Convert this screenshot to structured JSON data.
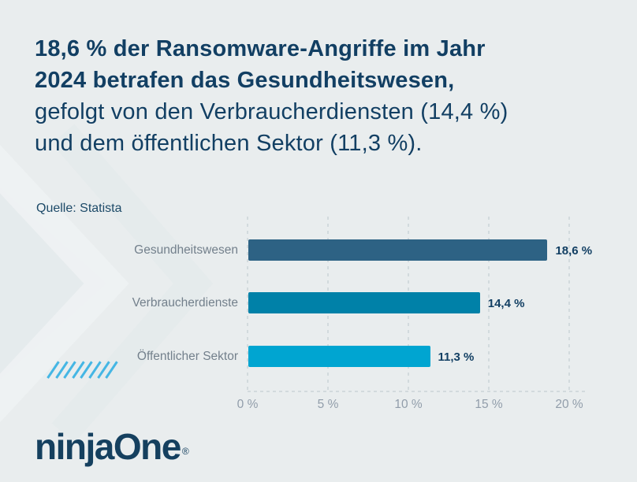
{
  "page": {
    "background": "#e9edee"
  },
  "headline": {
    "color": "#123f63",
    "lines": [
      {
        "text": "18,6 % der Ransomware-Angriffe im Jahr",
        "bold": true
      },
      {
        "text": "2024 betrafen das Gesundheitswesen,",
        "bold": true
      },
      {
        "text": "gefolgt von den Verbraucherdiensten (14,4 %)",
        "bold": false
      },
      {
        "text": "und dem öffentlichen Sektor (11,3 %).",
        "bold": false
      }
    ]
  },
  "source": {
    "label": "Quelle: Statista"
  },
  "chart_data": {
    "type": "bar",
    "orientation": "horizontal",
    "title": "",
    "xlabel": "",
    "ylabel": "",
    "categories": [
      "Gesundheitswesen",
      "Verbraucherdienste",
      "Öffentlicher Sektor"
    ],
    "values": [
      18.6,
      14.4,
      11.3
    ],
    "value_labels": [
      "18,6 %",
      "14,4 %",
      "11,3 %"
    ],
    "bar_colors": [
      "#2d6284",
      "#0081a8",
      "#00a5d1"
    ],
    "x_ticks": [
      "0 %",
      "5 %",
      "10 %",
      "15 %",
      "20 %"
    ],
    "x_tick_values": [
      0,
      5,
      10,
      15,
      20
    ],
    "xlim": [
      0,
      20
    ],
    "grid": "dashed-vertical",
    "legend": "none"
  },
  "decor": {
    "slash_count": 8,
    "slash_color": "#45b6e4",
    "chevron_color": "#e2e8ea"
  },
  "branding": {
    "logo_text": "ninjaOne",
    "registered_mark": "®",
    "logo_color": "#15405f"
  }
}
